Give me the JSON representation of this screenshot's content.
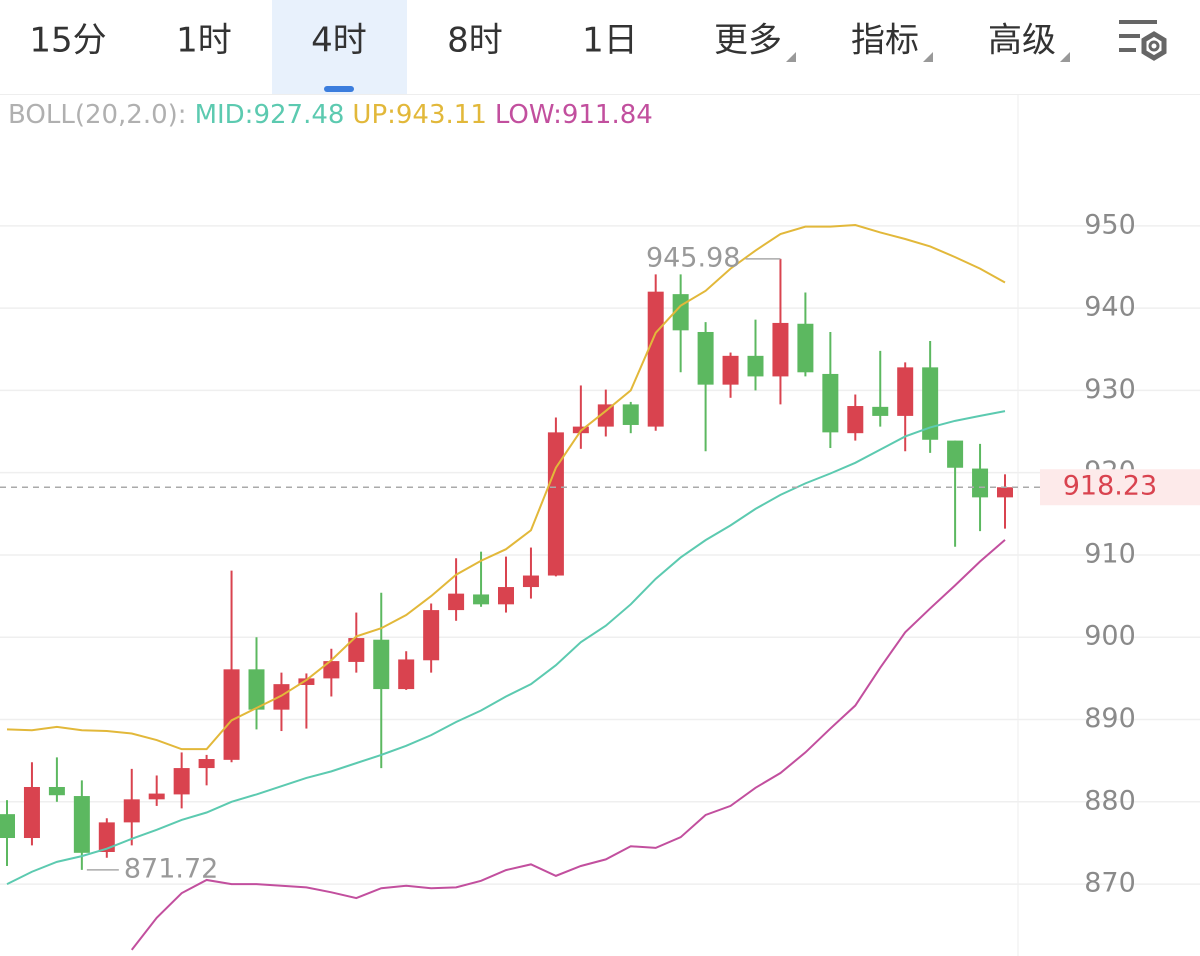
{
  "toolbar": {
    "tabs": [
      "15分",
      "1时",
      "4时",
      "8时",
      "1日"
    ],
    "menus": [
      "更多",
      "指标",
      "高级"
    ],
    "active": 2
  },
  "chart_data": {
    "type": "candlestick",
    "indicator": "BOLL(20,2.0):",
    "open": [
      878.5,
      875.6,
      881.8,
      880.7,
      873.9,
      877.5,
      880.3,
      880.9,
      884.1,
      885.1,
      896.1,
      891.2,
      894.2,
      895.0,
      897.0,
      899.7,
      893.7,
      897.2,
      903.3,
      905.2,
      904.0,
      906.1,
      907.5,
      924.8,
      925.6,
      928.3,
      925.6,
      941.7,
      937.1,
      930.7,
      934.2,
      931.7,
      938.1,
      932.0,
      924.8,
      928.0,
      926.9,
      932.8,
      923.9,
      920.5,
      917.0
    ],
    "high": [
      880.2,
      884.8,
      885.4,
      882.6,
      878.0,
      884.0,
      883.2,
      886.0,
      885.7,
      908.1,
      900.0,
      895.7,
      895.6,
      898.6,
      903.0,
      905.4,
      898.3,
      904.1,
      909.6,
      910.4,
      909.8,
      910.9,
      926.7,
      930.6,
      930.1,
      928.6,
      944.1,
      944.1,
      938.3,
      934.6,
      938.6,
      945.98,
      941.9,
      937.1,
      929.5,
      934.8,
      933.4,
      936.0,
      923.9,
      923.5,
      919.8
    ],
    "low": [
      872.2,
      874.7,
      880.0,
      871.72,
      873.2,
      874.7,
      879.5,
      879.2,
      882.0,
      884.8,
      888.8,
      888.6,
      888.9,
      892.8,
      895.7,
      884.1,
      893.6,
      895.7,
      902.0,
      903.7,
      903.0,
      904.7,
      907.4,
      922.9,
      924.4,
      924.8,
      925.1,
      932.2,
      922.6,
      929.1,
      930.0,
      928.3,
      931.7,
      923.0,
      923.9,
      925.6,
      922.6,
      922.4,
      911.0,
      912.9,
      913.2
    ],
    "close": [
      875.6,
      881.8,
      880.8,
      873.8,
      877.5,
      880.3,
      881.0,
      884.1,
      885.2,
      896.1,
      891.2,
      894.3,
      895.0,
      897.1,
      899.9,
      893.7,
      897.3,
      903.3,
      905.3,
      904.0,
      906.1,
      907.5,
      924.9,
      925.6,
      928.3,
      925.8,
      942.0,
      937.3,
      930.7,
      934.2,
      931.7,
      938.2,
      932.2,
      924.9,
      928.1,
      926.9,
      932.8,
      924.0,
      920.6,
      917.0,
      918.23
    ],
    "up_color": "#d9434f",
    "down_color": "#5cb860",
    "series": [
      {
        "name": "MID:927.48",
        "color": "#5ccab0",
        "values": [
          870.0,
          871.5,
          872.7,
          873.4,
          874.3,
          875.5,
          876.6,
          877.8,
          878.7,
          880.0,
          880.9,
          881.9,
          882.9,
          883.7,
          884.7,
          885.7,
          886.8,
          888.1,
          889.7,
          891.1,
          892.8,
          894.3,
          896.6,
          899.4,
          901.4,
          904.0,
          907.1,
          909.7,
          911.8,
          913.6,
          915.6,
          917.3,
          918.7,
          919.9,
          921.2,
          922.8,
          924.4,
          925.5,
          926.3,
          926.9,
          927.48
        ]
      },
      {
        "name": "UP:943.11",
        "color": "#e2b83a",
        "values": [
          888.8,
          888.7,
          889.1,
          888.7,
          888.6,
          888.3,
          887.5,
          886.4,
          886.4,
          889.9,
          891.4,
          892.9,
          894.8,
          897.2,
          900.1,
          901.1,
          902.7,
          905.0,
          907.6,
          909.3,
          910.7,
          913.0,
          920.6,
          925.1,
          927.5,
          930.0,
          937.0,
          940.3,
          942.1,
          944.8,
          947.0,
          949.0,
          949.9,
          949.9,
          950.1,
          949.2,
          948.4,
          947.5,
          946.2,
          944.8,
          943.11
        ]
      },
      {
        "name": "LOW:911.84",
        "color": "#c24f9e",
        "values": [
          null,
          null,
          null,
          null,
          null,
          862.0,
          865.9,
          868.9,
          870.5,
          870.0,
          870.0,
          869.8,
          869.6,
          869.0,
          868.3,
          869.5,
          869.8,
          869.5,
          869.6,
          870.4,
          871.7,
          872.4,
          871.0,
          872.2,
          873.0,
          874.6,
          874.4,
          875.7,
          878.4,
          879.5,
          881.7,
          883.5,
          886.0,
          888.9,
          891.7,
          896.3,
          900.6,
          903.5,
          906.3,
          909.2,
          911.84
        ]
      }
    ],
    "high_mark": {
      "index": 31,
      "value": 945.98
    },
    "low_mark": {
      "index": 3,
      "value": 871.72
    },
    "last_price": 918.23,
    "ylim": [
      861.26,
      965.78
    ],
    "yticks": [
      870,
      880,
      890,
      900,
      910,
      920,
      930,
      940,
      950
    ],
    "grid": true
  }
}
